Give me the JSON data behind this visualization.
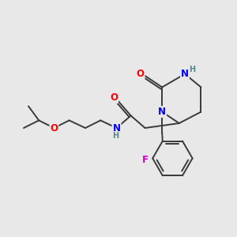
{
  "background_color": "#e8e8e8",
  "bond_color": "#3a3a3a",
  "atom_colors": {
    "N": "#0000ff",
    "O": "#ff0000",
    "F": "#cc00cc",
    "H_label": "#5a8888",
    "C": "#3a3a3a"
  },
  "figsize": [
    3.0,
    3.0
  ],
  "dpi": 100
}
